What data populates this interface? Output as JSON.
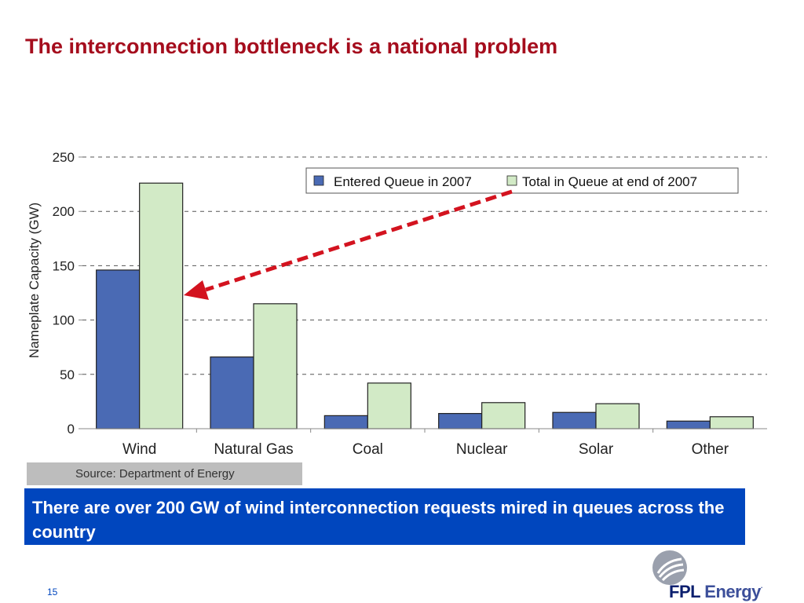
{
  "slide": {
    "title": "The interconnection bottleneck is a national problem",
    "source": "Source: Department of Energy",
    "callout": "There are over 200 GW of wind interconnection requests mired in queues across the country",
    "page_number": "15",
    "logo": {
      "brand": "FPL",
      "brand_suffix": "Energy",
      "mark": "."
    }
  },
  "colors": {
    "title": "#a50d1d",
    "series_entered": "#4a6ab4",
    "series_total": "#d2eac6",
    "arrow": "#d3131f",
    "callout_bg": "#0046be",
    "source_bg": "#bdbdbd"
  },
  "chart_data": {
    "type": "bar",
    "title": "",
    "xlabel": "",
    "ylabel": "Nameplate Capacity (GW)",
    "ylim": [
      0,
      250
    ],
    "yticks": [
      0,
      50,
      100,
      150,
      200,
      250
    ],
    "grid": true,
    "legend_placement": "top-right",
    "categories": [
      "Wind",
      "Natural Gas",
      "Coal",
      "Nuclear",
      "Solar",
      "Other"
    ],
    "series": [
      {
        "name": "Entered Queue in 2007",
        "values": [
          146,
          66,
          12,
          14,
          15,
          7
        ]
      },
      {
        "name": "Total in Queue at end of 2007",
        "values": [
          226,
          115,
          42,
          24,
          23,
          11
        ]
      }
    ]
  }
}
